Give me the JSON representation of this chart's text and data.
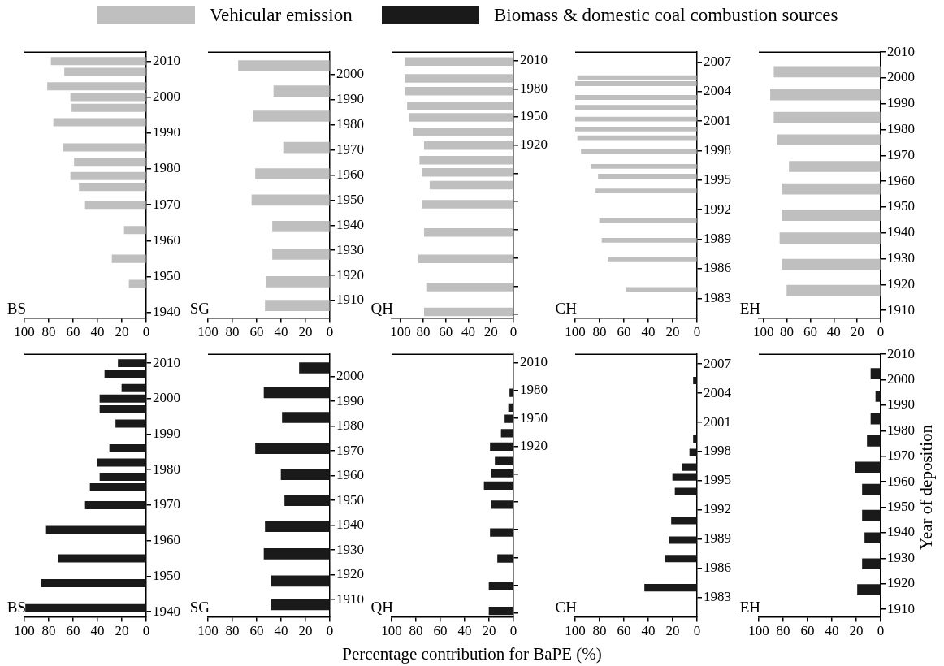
{
  "chart_data": [
    {
      "type": "bar",
      "orientation": "horizontal",
      "legend": "top",
      "annotations": [
        "BS"
      ],
      "xlim": [
        100,
        0
      ],
      "xticks": [
        100,
        80,
        60,
        40,
        20,
        0
      ],
      "ylim": [
        1938.5,
        2012.5
      ],
      "yticks": [
        1940,
        1950,
        1960,
        1970,
        1980,
        1990,
        2000,
        2010
      ],
      "x": [
        2010,
        2007,
        2003,
        2000,
        1997,
        1993,
        1986,
        1982,
        1978,
        1975,
        1970,
        1963,
        1955,
        1948
      ],
      "series": [
        {
          "name": "Vehicular emission",
          "color": "#bfbfbf",
          "values": [
            78,
            67,
            81,
            62,
            61,
            76,
            68,
            59,
            62,
            55,
            50,
            18,
            28,
            14
          ]
        }
      ]
    },
    {
      "type": "bar",
      "orientation": "horizontal",
      "annotations": [
        "SG"
      ],
      "xlim": [
        100,
        0
      ],
      "xticks": [
        100,
        80,
        60,
        40,
        20,
        0
      ],
      "ylim": [
        1903,
        2009
      ],
      "yticks": [
        1910,
        1920,
        1930,
        1940,
        1950,
        1960,
        1970,
        1980,
        1990,
        2000
      ],
      "x": [
        2003.5,
        1993.5,
        1983.5,
        1971,
        1960.5,
        1950,
        1939.5,
        1928.5,
        1917.5,
        1908
      ],
      "series": [
        {
          "color": "#bfbfbf",
          "values": [
            75,
            46,
            63,
            38,
            61,
            64,
            47,
            47,
            52,
            53
          ]
        }
      ]
    },
    {
      "type": "bar",
      "orientation": "horizontal",
      "annotations": [
        "QH"
      ],
      "xlim": [
        108,
        0
      ],
      "xticks": [
        100,
        80,
        60,
        40,
        20,
        0
      ],
      "ylim": [
        1736,
        2019
      ],
      "yticks": [
        {
          "value": 1740,
          "label": null
        },
        {
          "value": 1770,
          "label": null
        },
        {
          "value": 1800,
          "label": null
        },
        {
          "value": 1830,
          "label": null
        },
        {
          "value": 1860,
          "label": null
        },
        {
          "value": 1890,
          "label": null
        },
        1920,
        1950,
        1980,
        2010
      ],
      "x": [
        2009,
        1991,
        1977.5,
        1961.5,
        1949.5,
        1934,
        1919.5,
        1904,
        1891,
        1877.5,
        1857,
        1827,
        1799,
        1769,
        1742.5
      ],
      "series": [
        {
          "color": "#bfbfbf",
          "values": [
            96,
            96,
            96,
            94,
            92,
            89,
            79,
            83,
            81,
            74,
            81,
            79,
            84,
            77,
            79
          ]
        }
      ]
    },
    {
      "type": "bar",
      "orientation": "horizontal",
      "annotations": [
        "CH"
      ],
      "xlim": [
        100,
        0
      ],
      "xticks": [
        100,
        80,
        60,
        40,
        20,
        0
      ],
      "ylim": [
        1981,
        2008
      ],
      "yticks": [
        1983,
        1986,
        1989,
        1992,
        1995,
        1998,
        2001,
        2004,
        2007
      ],
      "x": [
        2005.4,
        2004.8,
        2003.4,
        2002.4,
        2001.2,
        2000.2,
        1999.3,
        1997.9,
        1996.4,
        1995.4,
        1993.9,
        1990.9,
        1988.9,
        1987,
        1983.9
      ],
      "series": [
        {
          "color": "#bfbfbf",
          "values": [
            98,
            100,
            100,
            100,
            100,
            100,
            98,
            95,
            87,
            81,
            83,
            80,
            78,
            73,
            58
          ]
        }
      ]
    },
    {
      "type": "bar",
      "orientation": "horizontal",
      "annotations": [
        "EH"
      ],
      "xlim": [
        104,
        0
      ],
      "xticks": [
        100,
        80,
        60,
        40,
        20,
        0
      ],
      "ylim": [
        1907,
        2010
      ],
      "yticks": [
        1910,
        1920,
        1930,
        1940,
        1950,
        1960,
        1970,
        1980,
        1990,
        2000,
        2010
      ],
      "x": [
        2002.4,
        1993.5,
        1984.7,
        1976,
        1965.7,
        1957,
        1946.8,
        1938,
        1927.8,
        1917.7
      ],
      "series": [
        {
          "color": "#bfbfbf",
          "values": [
            91,
            94,
            91,
            88,
            78,
            84,
            84,
            86,
            84,
            80
          ]
        }
      ]
    },
    {
      "type": "bar",
      "orientation": "horizontal",
      "legend": "top",
      "annotations": [
        "BS"
      ],
      "xlim": [
        100,
        0
      ],
      "xticks": [
        100,
        80,
        60,
        40,
        20,
        0
      ],
      "ylim": [
        1938.5,
        2012.5
      ],
      "yticks": [
        1940,
        1950,
        1960,
        1970,
        1980,
        1990,
        2000,
        2010
      ],
      "x": [
        2010,
        2007,
        2003,
        2000,
        1997,
        1993,
        1986,
        1982,
        1978,
        1975,
        1970,
        1963,
        1955,
        1948,
        1941
      ],
      "series": [
        {
          "name": "Biomass & domestic coal combustion sources",
          "color": "#1a1a1a",
          "values": [
            23,
            34,
            20,
            38,
            38,
            25,
            30,
            40,
            38,
            46,
            50,
            82,
            72,
            86,
            99
          ]
        }
      ]
    },
    {
      "type": "bar",
      "orientation": "horizontal",
      "annotations": [
        "SG"
      ],
      "xlim": [
        100,
        0
      ],
      "xticks": [
        100,
        80,
        60,
        40,
        20,
        0
      ],
      "ylim": [
        1903,
        2009
      ],
      "yticks": [
        1910,
        1920,
        1930,
        1940,
        1950,
        1960,
        1970,
        1980,
        1990,
        2000
      ],
      "x": [
        2003.5,
        1993.5,
        1983.5,
        1971,
        1960.5,
        1950,
        1939.5,
        1928.5,
        1917.5,
        1908
      ],
      "series": [
        {
          "color": "#1a1a1a",
          "values": [
            25,
            54,
            39,
            61,
            40,
            37,
            53,
            54,
            48,
            48
          ]
        }
      ]
    },
    {
      "type": "bar",
      "orientation": "horizontal",
      "annotations": [
        "QH"
      ],
      "xlabel": "Percentage contribution for BaPE (%)",
      "xlim": [
        100,
        0
      ],
      "xticks": [
        100,
        80,
        60,
        40,
        20,
        0
      ],
      "ylim": [
        1736,
        2019
      ],
      "yticks": [
        {
          "value": 1740,
          "label": null
        },
        {
          "value": 1770,
          "label": null
        },
        {
          "value": 1800,
          "label": null
        },
        {
          "value": 1830,
          "label": null
        },
        {
          "value": 1860,
          "label": null
        },
        {
          "value": 1890,
          "label": null
        },
        1920,
        1950,
        1980,
        2010
      ],
      "x": [
        1977.5,
        1961.5,
        1949.5,
        1934,
        1919.5,
        1904,
        1891,
        1877.5,
        1857,
        1827,
        1799,
        1769,
        1742.5
      ],
      "series": [
        {
          "color": "#1a1a1a",
          "values": [
            3,
            4,
            7,
            10,
            19,
            15,
            18,
            24,
            18,
            19,
            13,
            20,
            20
          ]
        }
      ]
    },
    {
      "type": "bar",
      "orientation": "horizontal",
      "annotations": [
        "CH"
      ],
      "xlim": [
        100,
        0
      ],
      "xticks": [
        100,
        80,
        60,
        40,
        20,
        0
      ],
      "ylim": [
        1981,
        2008
      ],
      "yticks": [
        1983,
        1986,
        1989,
        1992,
        1995,
        1998,
        2001,
        2004,
        2007
      ],
      "x": [
        2005.3,
        2002.4,
        2001.2,
        1999.3,
        1997.9,
        1996.4,
        1995.4,
        1993.9,
        1990.9,
        1988.9,
        1987,
        1984
      ],
      "series": [
        {
          "color": "#1a1a1a",
          "values": [
            3,
            null,
            null,
            3,
            6,
            12,
            20,
            18,
            21,
            23,
            26,
            43
          ]
        }
      ]
    },
    {
      "type": "bar",
      "orientation": "horizontal",
      "annotations": [
        "EH"
      ],
      "ylabel": "Year of deposition",
      "xlim": [
        100,
        0
      ],
      "xticks": [
        100,
        80,
        60,
        40,
        20,
        0
      ],
      "ylim": [
        1907,
        2010
      ],
      "yticks": [
        1910,
        1920,
        1930,
        1940,
        1950,
        1960,
        1970,
        1980,
        1990,
        2000,
        2010
      ],
      "x": [
        2002.4,
        1993.5,
        1984.7,
        1976,
        1965.7,
        1957,
        1946.8,
        1938,
        1927.8,
        1917.7
      ],
      "series": [
        {
          "color": "#1a1a1a",
          "values": [
            8,
            4,
            8,
            11,
            21,
            15,
            15,
            13,
            15,
            19
          ]
        }
      ]
    }
  ]
}
